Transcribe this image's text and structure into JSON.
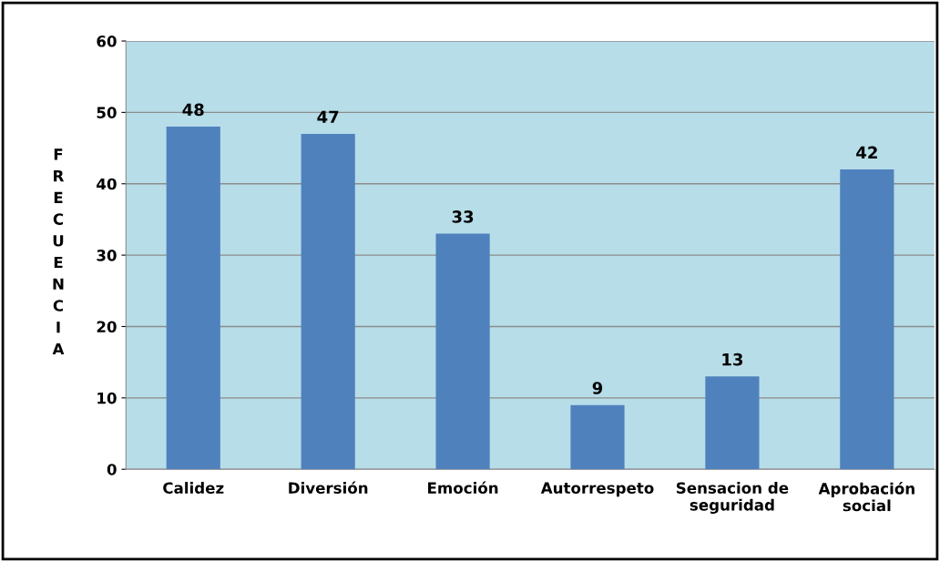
{
  "chart_data": {
    "type": "bar",
    "ylabel": "FRECUENCIA",
    "categories": [
      "Calidez",
      "Diversión",
      "Emoción",
      "Autorrespeto",
      "Sensacion de\nseguridad",
      "Aprobación\nsocial"
    ],
    "values": [
      48,
      47,
      33,
      9,
      13,
      42
    ],
    "color": "#4f81bd",
    "ylim": [
      0,
      60
    ],
    "yticks": [
      0,
      10,
      20,
      30,
      40,
      50,
      60
    ],
    "grid": "y",
    "data_labels": true,
    "legend": false
  }
}
